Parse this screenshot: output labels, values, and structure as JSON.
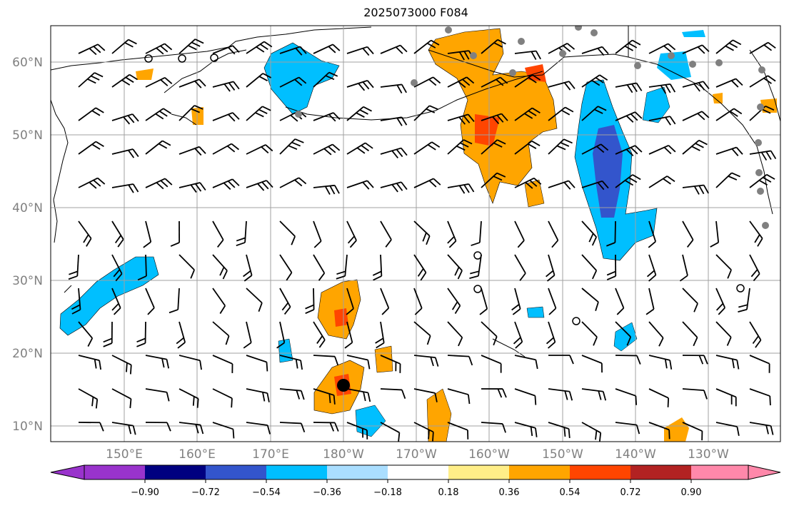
{
  "title": "2025073000 F084",
  "map": {
    "lat_labels": [
      "60°N",
      "50°N",
      "40°N",
      "30°N",
      "20°N",
      "10°N"
    ],
    "lon_labels": [
      "150°E",
      "160°E",
      "170°E",
      "180°W",
      "170°W",
      "160°W",
      "150°W",
      "140°W",
      "130°W"
    ],
    "gridline_color": "#a0a0a0",
    "coastline_color": "#000000",
    "barb_color": "#000000",
    "station_marker_color": "#808080",
    "cyclone_marker_color": "#000000"
  },
  "colorbar": {
    "tick_labels": [
      "−0.90",
      "−0.72",
      "−0.54",
      "−0.36",
      "−0.18",
      "0.18",
      "0.36",
      "0.54",
      "0.72",
      "0.90"
    ],
    "colors": [
      "#9933cc",
      "#000080",
      "#3355cc",
      "#00bfff",
      "#aadeff",
      "#ffffff",
      "#ffee88",
      "#ffa500",
      "#ff4500",
      "#b22222",
      "#ff88aa"
    ]
  }
}
